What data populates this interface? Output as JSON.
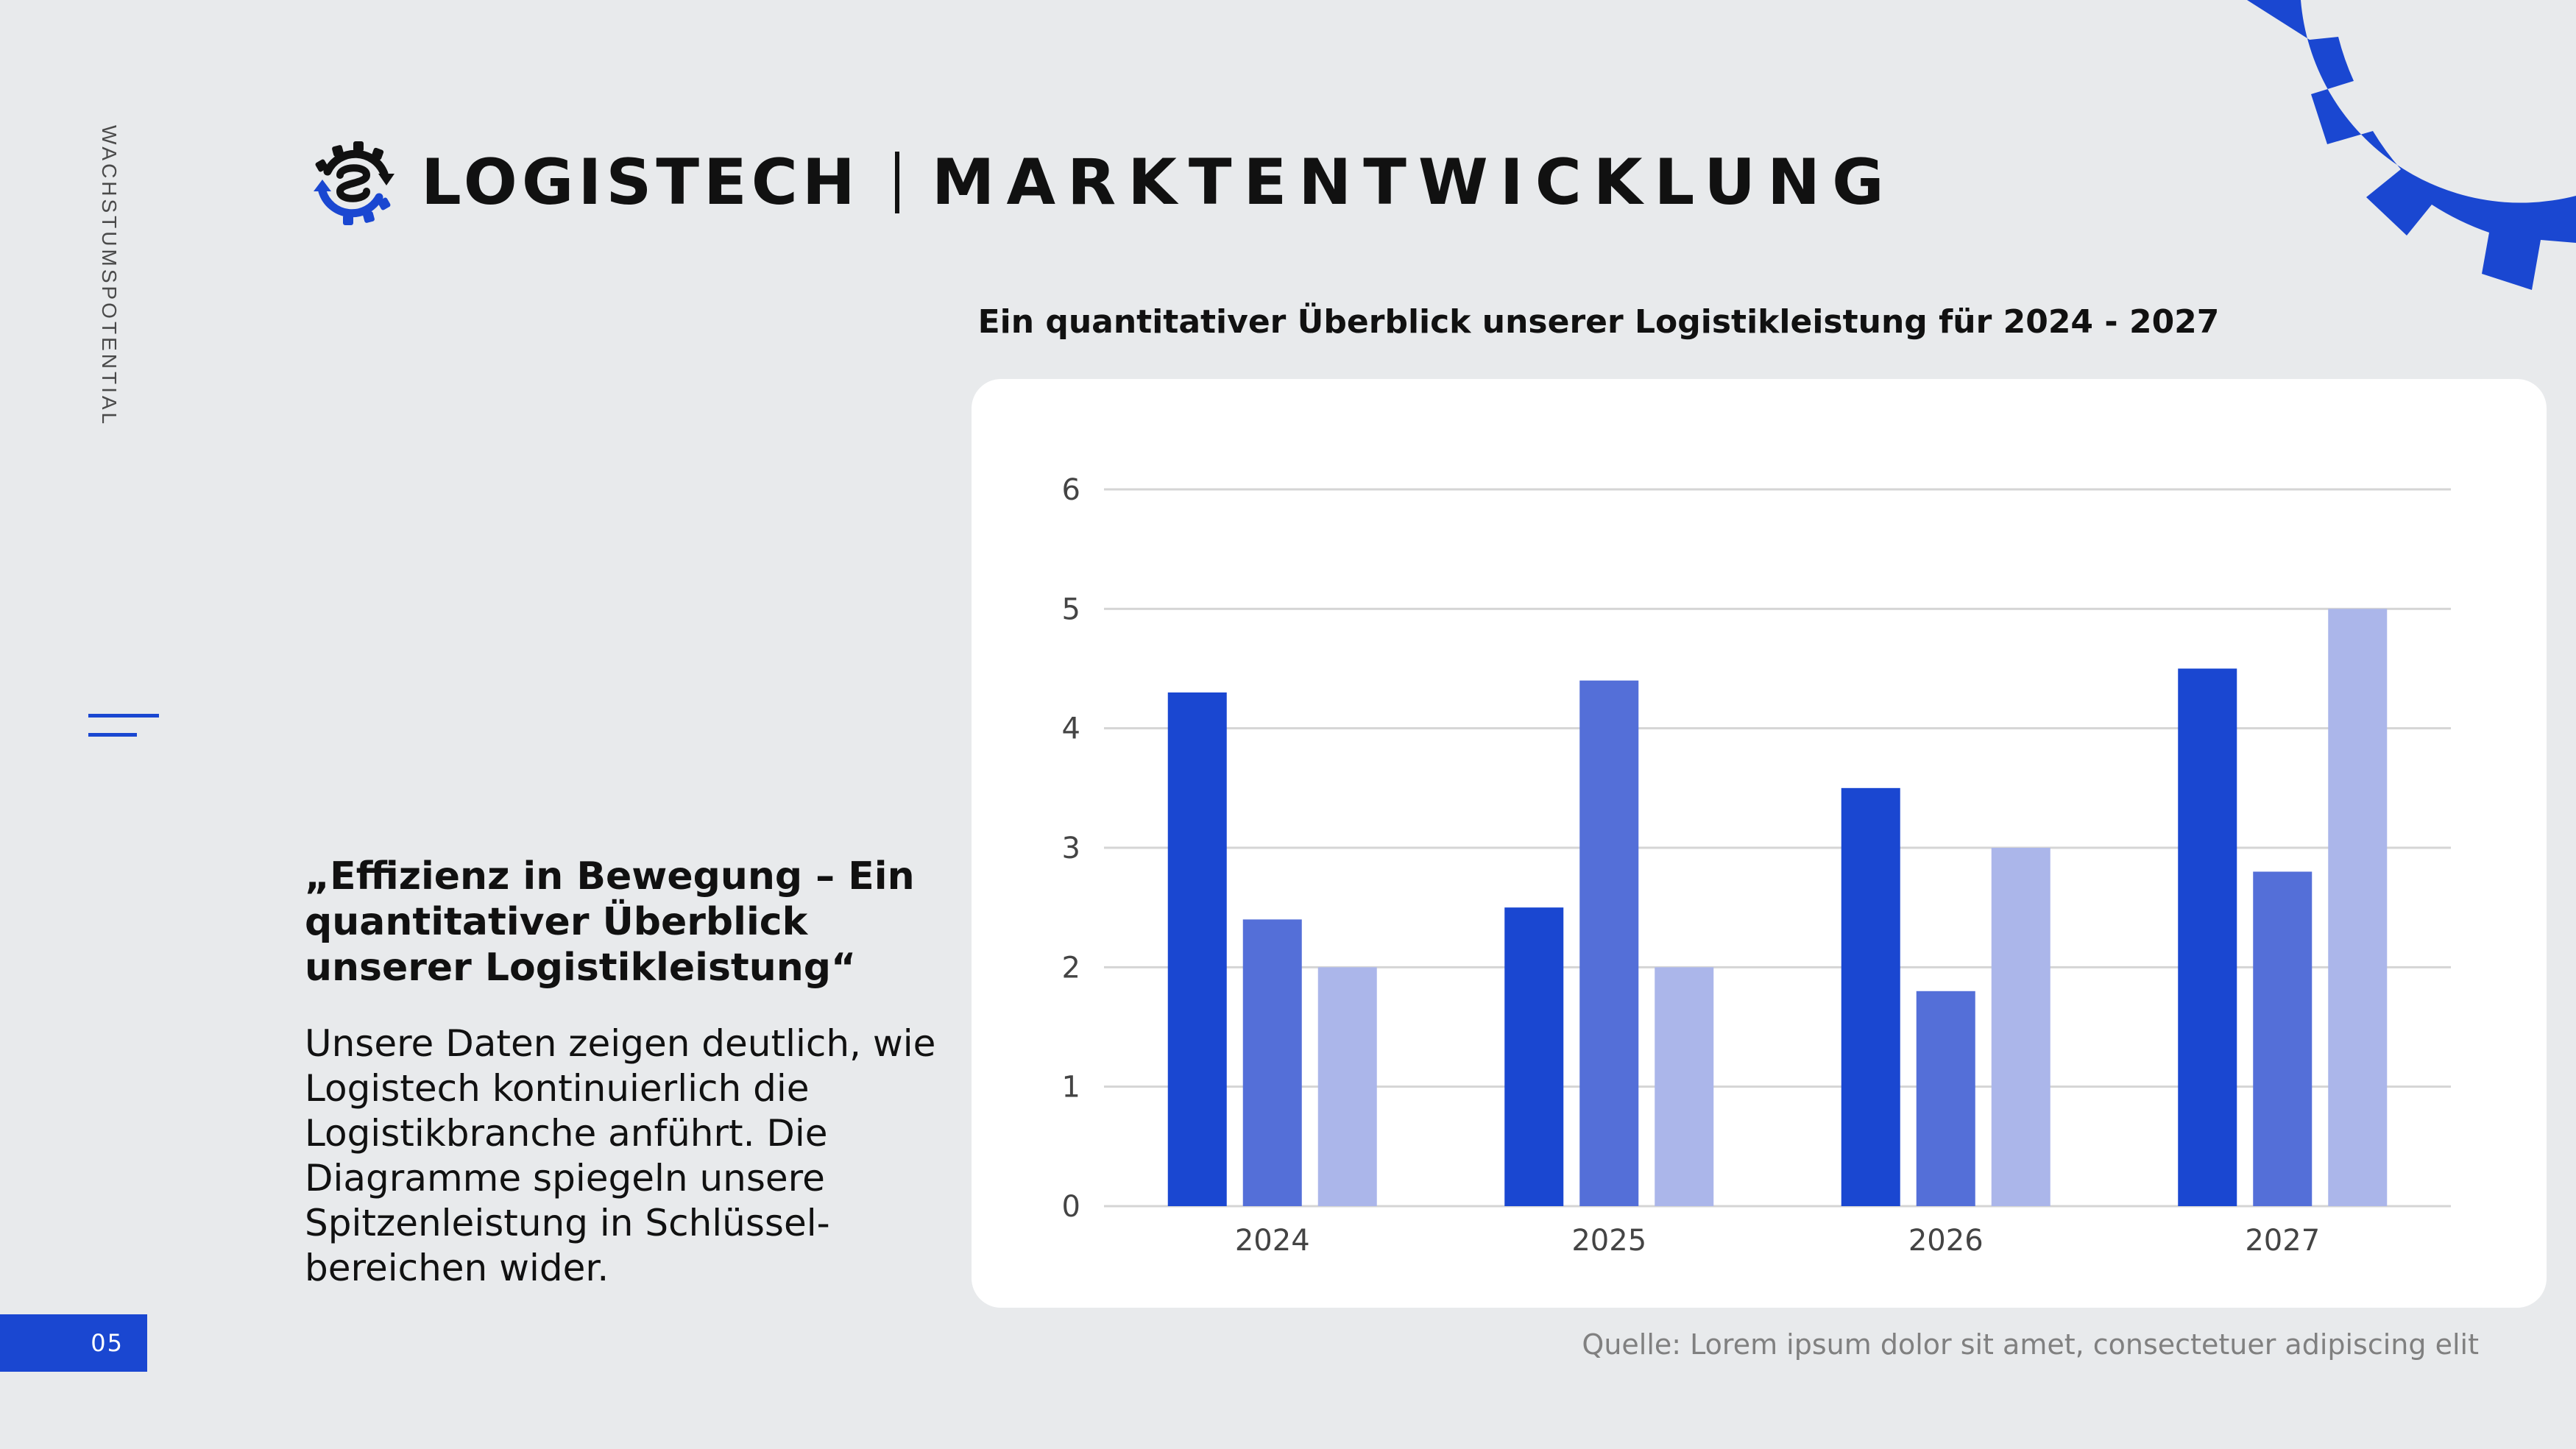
{
  "side_label": "WACHSTUMSPOTENTIAL",
  "page_number": "05",
  "header": {
    "brand": "LOGISTECH",
    "section": "MARKTENTWICKLUNG"
  },
  "quote": "„Effizienz in Bewegung – Ein quantitativer Überblick unserer Logistikleistung“",
  "body_text": "Unsere Daten zeigen deutlich, wie Logistech kontinuierlich die Logistikbranche anführt. Die Diagramme spiegeln unsere Spitzenleistung in Schlüssel-bereichen wider.",
  "source": "Quelle: Lorem ipsum dolor sit amet, consectetuer adipiscing elit",
  "colors": {
    "accent": "#1A47D1",
    "background": "#E8EAEC"
  },
  "chart_data": {
    "type": "bar",
    "title": "Ein quantitativer Überblick unserer Logistikleistung für 2024 - 2027",
    "categories": [
      "2024",
      "2025",
      "2026",
      "2027"
    ],
    "series": [
      {
        "values": [
          4.3,
          2.5,
          3.5,
          4.5
        ],
        "color": "#1A47D1"
      },
      {
        "values": [
          2.4,
          4.4,
          1.8,
          2.8
        ],
        "color": "#546FD8"
      },
      {
        "values": [
          2.0,
          2.0,
          3.0,
          5.0
        ],
        "color": "#ABB6EA"
      }
    ],
    "ylim": [
      0,
      6
    ],
    "yticks": [
      "0",
      "1",
      "2",
      "3",
      "4",
      "5",
      "6"
    ],
    "grid": true,
    "xlabel": "",
    "ylabel": ""
  }
}
